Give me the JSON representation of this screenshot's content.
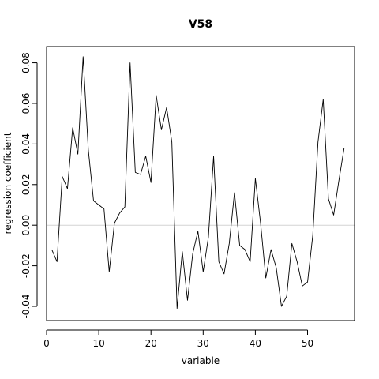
{
  "chart_data": {
    "type": "line",
    "title": "V58",
    "xlabel": "variable",
    "ylabel": "regression coefficient",
    "xlim": [
      0,
      59
    ],
    "ylim": [
      -0.047,
      0.088
    ],
    "x_ticks": [
      0,
      10,
      20,
      30,
      40,
      50
    ],
    "x_tick_labels": [
      "0",
      "10",
      "20",
      "30",
      "40",
      "50"
    ],
    "y_ticks": [
      -0.04,
      -0.02,
      0.0,
      0.02,
      0.04,
      0.06,
      0.08
    ],
    "y_tick_labels": [
      "-0.04",
      "-0.02",
      "0.00",
      "0.02",
      "0.04",
      "0.06",
      "0.08"
    ],
    "reference_line": {
      "y": 0,
      "color": "#d3d3d3"
    },
    "grid": false,
    "line_color": "#000000",
    "series": [
      {
        "x": [
          1,
          2,
          3,
          4,
          5,
          6,
          7,
          8,
          9,
          10,
          11,
          12,
          13,
          14,
          15,
          16,
          17,
          18,
          19,
          20,
          21,
          22,
          23,
          24,
          25,
          26,
          27,
          28,
          29,
          30,
          31,
          32,
          33,
          34,
          35,
          36,
          37,
          38,
          39,
          40,
          41,
          42,
          43,
          44,
          45,
          46,
          47,
          48,
          49,
          50,
          51,
          52,
          53,
          54,
          55,
          56,
          57
        ],
        "values": [
          -0.012,
          -0.018,
          0.024,
          0.018,
          0.048,
          0.035,
          0.083,
          0.037,
          0.012,
          0.01,
          0.008,
          -0.023,
          0.001,
          0.006,
          0.009,
          0.08,
          0.026,
          0.025,
          0.034,
          0.021,
          0.064,
          0.047,
          0.058,
          0.041,
          -0.041,
          -0.013,
          -0.037,
          -0.014,
          -0.003,
          -0.023,
          -0.006,
          0.034,
          -0.018,
          -0.024,
          -0.009,
          0.016,
          -0.01,
          -0.012,
          -0.018,
          0.023,
          0.001,
          -0.026,
          -0.012,
          -0.021,
          -0.04,
          -0.035,
          -0.009,
          -0.018,
          -0.03,
          -0.028,
          -0.005,
          0.041,
          0.062,
          0.013,
          0.005,
          0.022,
          0.038
        ]
      }
    ]
  }
}
